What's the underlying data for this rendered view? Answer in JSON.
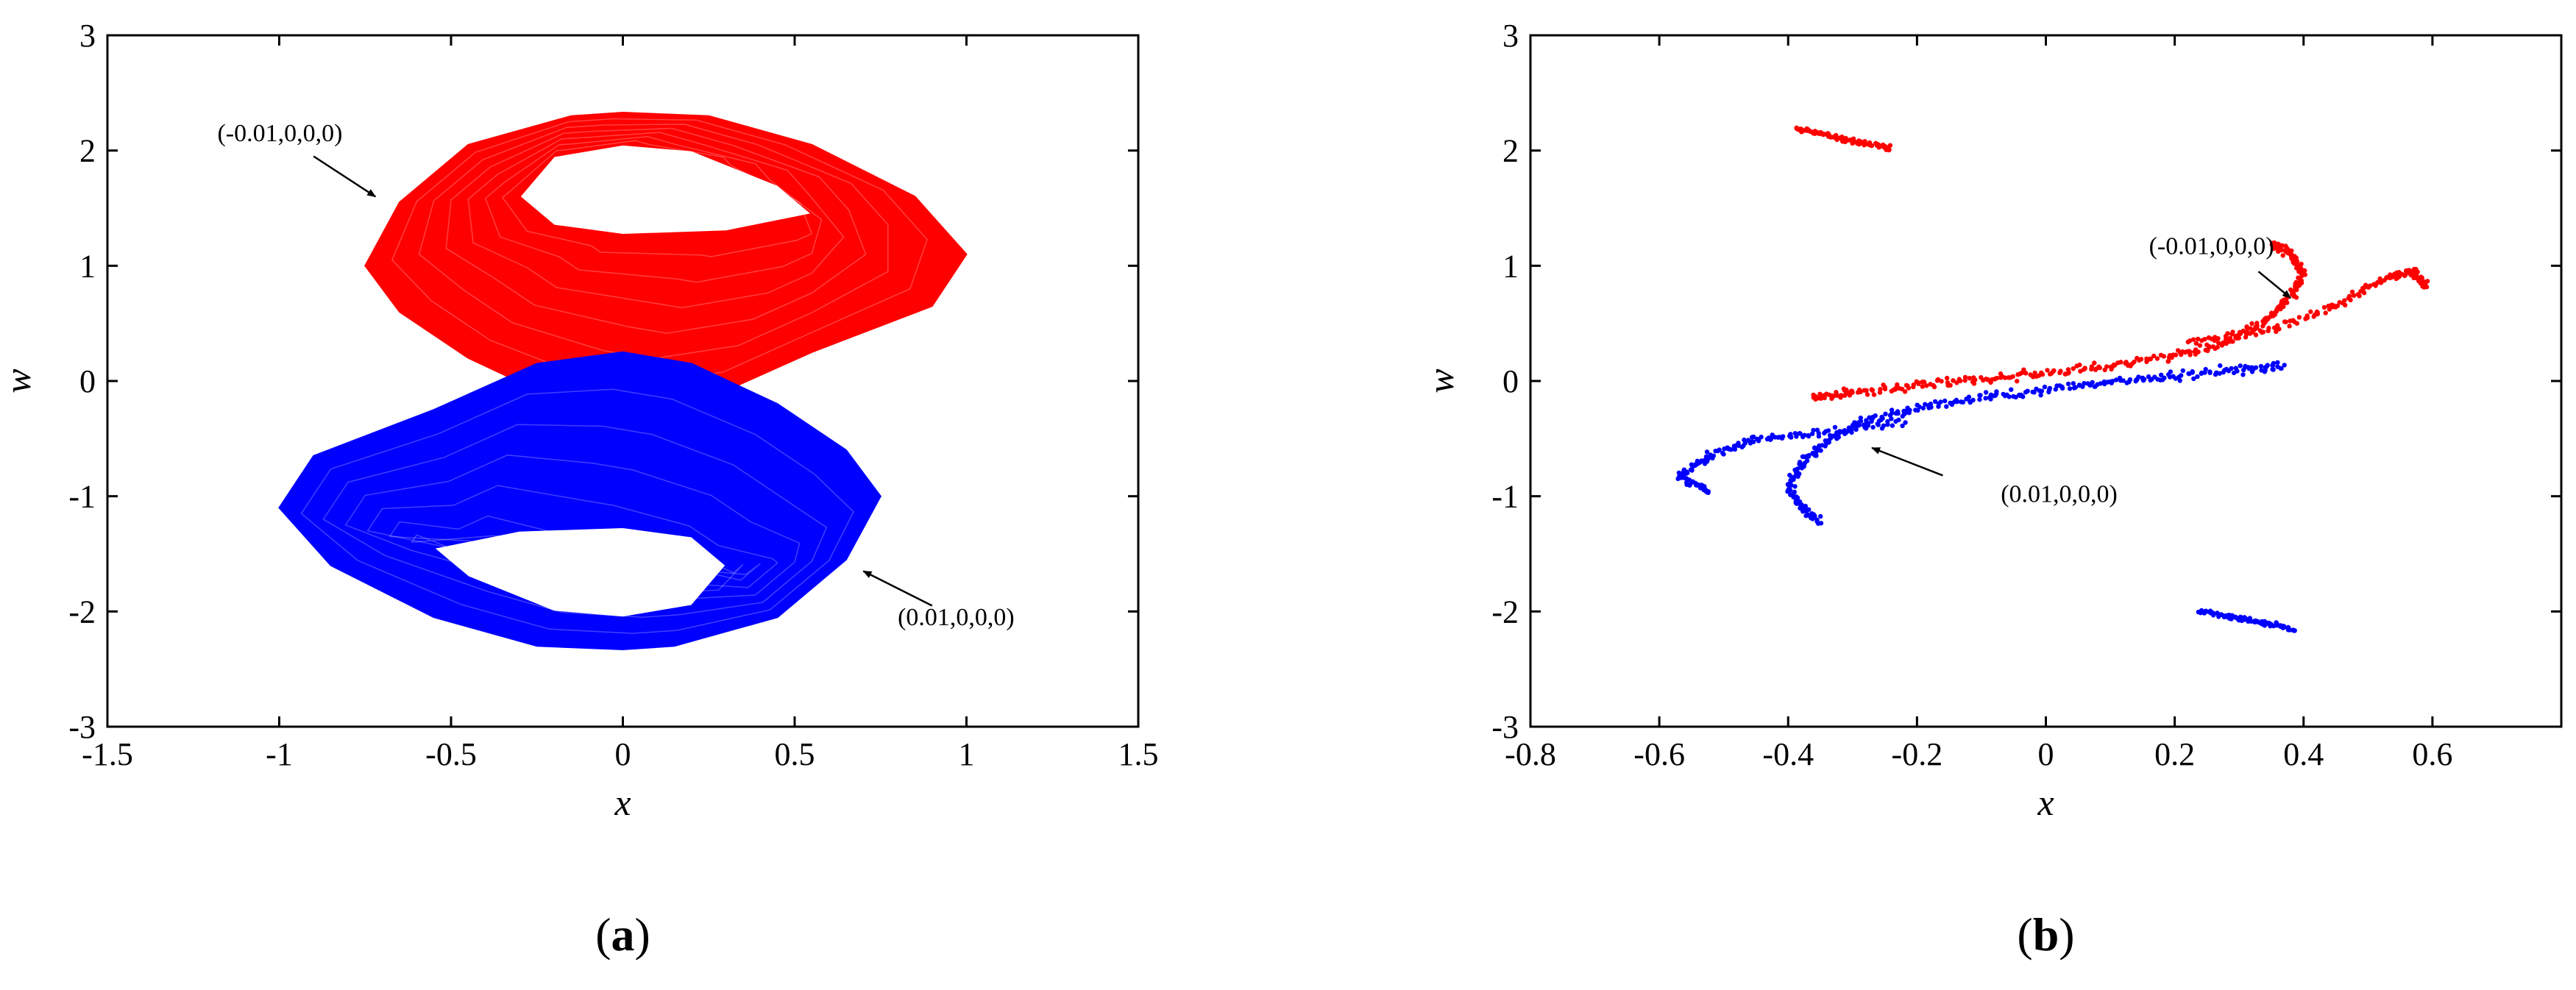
{
  "colors": {
    "red_series": "#ff0000",
    "blue_series": "#0000ff",
    "axis": "#000000"
  },
  "panels": [
    {
      "panel_label": "a",
      "chart_data": {
        "type": "line",
        "xlabel": "x",
        "ylabel": "w",
        "xlim": [
          -1.5,
          1.5
        ],
        "ylim": [
          -3,
          3
        ],
        "xticks": [
          "-1.5",
          "-1",
          "-0.5",
          "0",
          "0.5",
          "1",
          "1.5"
        ],
        "yticks": [
          "-3",
          "-2",
          "-1",
          "0",
          "1",
          "2",
          "3"
        ],
        "grid": false,
        "series": [
          {
            "color": "red",
            "initial_condition": "(-0.01,0,0,0)",
            "outline": [
              [
                -0.65,
                1.55
              ],
              [
                -0.45,
                2.05
              ],
              [
                -0.15,
                2.3
              ],
              [
                0.0,
                2.33
              ],
              [
                0.25,
                2.3
              ],
              [
                0.55,
                2.05
              ],
              [
                0.85,
                1.6
              ],
              [
                1.0,
                1.1
              ],
              [
                0.9,
                0.65
              ],
              [
                0.55,
                0.25
              ],
              [
                0.25,
                -0.15
              ],
              [
                0.0,
                -0.25
              ],
              [
                -0.2,
                -0.15
              ],
              [
                -0.45,
                0.2
              ],
              [
                -0.65,
                0.6
              ],
              [
                -0.75,
                1.0
              ]
            ],
            "hole": [
              [
                -0.3,
                1.6
              ],
              [
                -0.2,
                1.95
              ],
              [
                0.0,
                2.05
              ],
              [
                0.2,
                2.0
              ],
              [
                0.45,
                1.7
              ],
              [
                0.55,
                1.45
              ],
              [
                0.3,
                1.3
              ],
              [
                0.0,
                1.27
              ],
              [
                -0.2,
                1.35
              ]
            ]
          },
          {
            "color": "blue",
            "initial_condition": "(0.01,0,0,0)",
            "outline": [
              [
                -1.0,
                -1.1
              ],
              [
                -0.9,
                -0.65
              ],
              [
                -0.55,
                -0.25
              ],
              [
                -0.25,
                0.15
              ],
              [
                0.0,
                0.25
              ],
              [
                0.2,
                0.15
              ],
              [
                0.45,
                -0.2
              ],
              [
                0.65,
                -0.6
              ],
              [
                0.75,
                -1.0
              ],
              [
                0.65,
                -1.55
              ],
              [
                0.45,
                -2.05
              ],
              [
                0.15,
                -2.3
              ],
              [
                0.0,
                -2.33
              ],
              [
                -0.25,
                -2.3
              ],
              [
                -0.55,
                -2.05
              ],
              [
                -0.85,
                -1.6
              ]
            ],
            "hole": [
              [
                -0.55,
                -1.45
              ],
              [
                -0.45,
                -1.7
              ],
              [
                -0.2,
                -2.0
              ],
              [
                0.0,
                -2.05
              ],
              [
                0.2,
                -1.95
              ],
              [
                0.3,
                -1.6
              ],
              [
                0.2,
                -1.35
              ],
              [
                0.0,
                -1.27
              ],
              [
                -0.3,
                -1.3
              ]
            ]
          }
        ],
        "annotations": [
          {
            "text": "(-0.01,0,0,0)",
            "x": -1.18,
            "y": 2.08,
            "arrow_to": [
              -0.72,
              1.6
            ],
            "arrow_from": [
              -0.9,
              1.95
            ]
          },
          {
            "text": "(0.01,0,0,0)",
            "x": 0.8,
            "y": -2.12,
            "arrow_to": [
              0.7,
              -1.65
            ],
            "arrow_from": [
              0.9,
              -1.95
            ]
          }
        ]
      }
    },
    {
      "panel_label": "b",
      "chart_data": {
        "type": "scatter",
        "xlabel": "x",
        "ylabel": "w",
        "xlim": [
          -0.8,
          0.8
        ],
        "ylim": [
          -3,
          3
        ],
        "xticks": [
          "-0.8",
          "-0.6",
          "-0.4",
          "-0.2",
          "0",
          "0.2",
          "0.4",
          "0.6"
        ],
        "yticks": [
          "-3",
          "-2",
          "-1",
          "0",
          "1",
          "2",
          "3"
        ],
        "grid": false,
        "series": [
          {
            "color": "red",
            "initial_condition": "(-0.01,0,0,0)",
            "segments": [
              {
                "kind": "cluster",
                "points": [
                  [
                    -0.39,
                    2.19
                  ],
                  [
                    -0.36,
                    2.16
                  ],
                  [
                    -0.33,
                    2.12
                  ],
                  [
                    -0.3,
                    2.08
                  ],
                  [
                    -0.27,
                    2.05
                  ],
                  [
                    -0.24,
                    2.02
                  ]
                ]
              },
              {
                "kind": "curve",
                "points": [
                  [
                    -0.36,
                    -0.14
                  ],
                  [
                    -0.3,
                    -0.1
                  ],
                  [
                    -0.2,
                    -0.04
                  ],
                  [
                    -0.1,
                    0.01
                  ],
                  [
                    0.0,
                    0.07
                  ],
                  [
                    0.1,
                    0.13
                  ],
                  [
                    0.2,
                    0.22
                  ],
                  [
                    0.28,
                    0.33
                  ],
                  [
                    0.34,
                    0.52
                  ],
                  [
                    0.38,
                    0.72
                  ],
                  [
                    0.4,
                    0.93
                  ],
                  [
                    0.38,
                    1.1
                  ],
                  [
                    0.35,
                    1.2
                  ]
                ]
              },
              {
                "kind": "curve",
                "points": [
                  [
                    0.22,
                    0.33
                  ],
                  [
                    0.35,
                    0.45
                  ],
                  [
                    0.45,
                    0.65
                  ],
                  [
                    0.53,
                    0.9
                  ],
                  [
                    0.57,
                    0.95
                  ],
                  [
                    0.59,
                    0.82
                  ]
                ]
              }
            ]
          },
          {
            "color": "blue",
            "initial_condition": "(0.01,0,0,0)",
            "segments": [
              {
                "kind": "cluster",
                "points": [
                  [
                    0.24,
                    -2.0
                  ],
                  [
                    0.27,
                    -2.03
                  ],
                  [
                    0.3,
                    -2.06
                  ],
                  [
                    0.33,
                    -2.09
                  ],
                  [
                    0.36,
                    -2.12
                  ],
                  [
                    0.39,
                    -2.17
                  ]
                ]
              },
              {
                "kind": "curve",
                "points": [
                  [
                    0.37,
                    0.14
                  ],
                  [
                    0.3,
                    0.1
                  ],
                  [
                    0.2,
                    0.04
                  ],
                  [
                    0.1,
                    -0.01
                  ],
                  [
                    0.0,
                    -0.08
                  ],
                  [
                    -0.1,
                    -0.14
                  ],
                  [
                    -0.2,
                    -0.23
                  ],
                  [
                    -0.28,
                    -0.35
                  ],
                  [
                    -0.34,
                    -0.52
                  ],
                  [
                    -0.38,
                    -0.72
                  ],
                  [
                    -0.4,
                    -0.93
                  ],
                  [
                    -0.38,
                    -1.1
                  ],
                  [
                    -0.35,
                    -1.22
                  ]
                ]
              },
              {
                "kind": "curve",
                "points": [
                  [
                    -0.22,
                    -0.35
                  ],
                  [
                    -0.35,
                    -0.45
                  ],
                  [
                    -0.45,
                    -0.5
                  ],
                  [
                    -0.52,
                    -0.65
                  ],
                  [
                    -0.57,
                    -0.82
                  ],
                  [
                    -0.52,
                    -0.97
                  ]
                ]
              }
            ]
          }
        ],
        "annotations": [
          {
            "text": "(-0.01,0,0,0)",
            "x": 0.16,
            "y": 1.1,
            "arrow_to": [
              0.38,
              0.72
            ],
            "arrow_from": [
              0.33,
              0.95
            ]
          },
          {
            "text": "(0.01,0,0,0)",
            "x": -0.07,
            "y": -1.05,
            "arrow_to": [
              -0.27,
              -0.58
            ],
            "arrow_from": [
              -0.16,
              -0.82
            ]
          }
        ]
      }
    }
  ]
}
